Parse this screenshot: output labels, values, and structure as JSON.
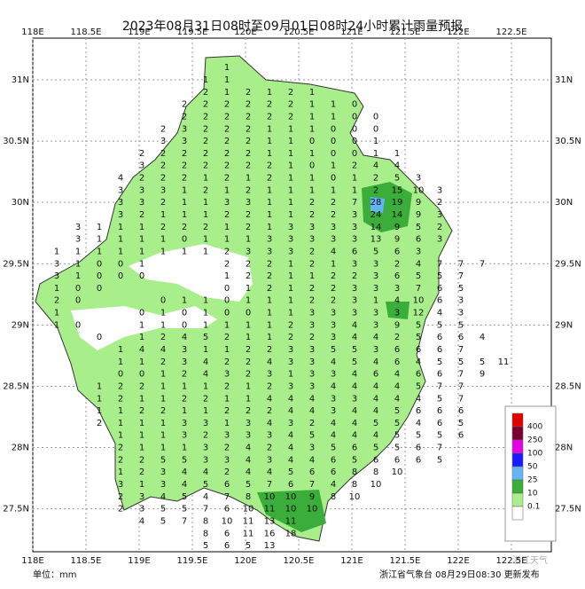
{
  "title": "2023年08月31日08时至09月01日08时24小时累计雨量预报",
  "xticks": [
    {
      "value": 118,
      "label": "118E"
    },
    {
      "value": 118.5,
      "label": "118.5E"
    },
    {
      "value": 119,
      "label": "119E"
    },
    {
      "value": 119.5,
      "label": "119.5E"
    },
    {
      "value": 120,
      "label": "120E"
    },
    {
      "value": 120.5,
      "label": "120.5E"
    },
    {
      "value": 121,
      "label": "121E"
    },
    {
      "value": 121.5,
      "label": "121.5E"
    },
    {
      "value": 122,
      "label": "122E"
    },
    {
      "value": 122.5,
      "label": "122.5E"
    }
  ],
  "yticks": [
    {
      "value": 31,
      "label": "31N"
    },
    {
      "value": 30.5,
      "label": "30.5N"
    },
    {
      "value": 30,
      "label": "30N"
    },
    {
      "value": 29.5,
      "label": "29.5N"
    },
    {
      "value": 29,
      "label": "29N"
    },
    {
      "value": 28.5,
      "label": "28.5N"
    },
    {
      "value": 28,
      "label": "28N"
    },
    {
      "value": 27.5,
      "label": "27.5N"
    }
  ],
  "xlim": [
    118,
    122.875
  ],
  "ylim": [
    27.15,
    31.34
  ],
  "legend": {
    "labels": [
      "400",
      "250",
      "100",
      "50",
      "25",
      "10",
      "0.1"
    ],
    "colors": [
      "#e00000",
      "#7a0032",
      "#e600e6",
      "#1a1aff",
      "#64b4f5",
      "#3aad3a",
      "#a8ef8c",
      "#ffffff"
    ]
  },
  "grid_values": [
    {
      "lat": 31.1,
      "lon0": 119.825,
      "values": [
        1
      ]
    },
    {
      "lat": 31.0,
      "lon0": 119.625,
      "values": [
        1,
        1
      ]
    },
    {
      "lat": 30.9,
      "lon0": 119.625,
      "values": [
        2,
        1,
        2,
        1,
        2,
        1
      ]
    },
    {
      "lat": 30.8,
      "lon0": 119.425,
      "values": [
        2,
        2,
        2,
        2,
        2,
        2,
        1,
        1,
        0
      ]
    },
    {
      "lat": 30.7,
      "lon0": 119.425,
      "values": [
        2,
        2,
        2,
        2,
        2,
        2,
        1,
        1,
        0,
        0
      ]
    },
    {
      "lat": 30.6,
      "lon0": 119.225,
      "values": [
        2,
        3,
        2,
        2,
        2,
        1,
        1,
        1,
        0,
        0,
        0
      ]
    },
    {
      "lat": 30.5,
      "lon0": 119.225,
      "values": [
        3,
        3,
        2,
        2,
        2,
        1,
        1,
        0,
        0,
        0,
        1
      ]
    },
    {
      "lat": 30.4,
      "lon0": 119.025,
      "values": [
        2,
        2,
        2,
        2,
        2,
        2,
        1,
        1,
        1,
        0,
        0,
        1,
        1
      ]
    },
    {
      "lat": 30.3,
      "lon0": 119.025,
      "values": [
        3,
        2,
        2,
        2,
        2,
        2,
        2,
        1,
        0,
        1,
        2,
        4,
        4
      ]
    },
    {
      "lat": 30.2,
      "lon0": 118.825,
      "values": [
        4,
        2,
        2,
        2,
        1,
        2,
        1,
        2,
        1,
        1,
        0,
        1,
        2,
        5,
        3
      ]
    },
    {
      "lat": 30.1,
      "lon0": 118.825,
      "values": [
        3,
        3,
        3,
        1,
        2,
        1,
        2,
        1,
        1,
        1,
        1,
        1,
        2,
        15,
        10,
        3
      ]
    },
    {
      "lat": 30.0,
      "lon0": 118.825,
      "values": [
        3,
        3,
        2,
        1,
        1,
        3,
        3,
        1,
        1,
        2,
        2,
        7,
        28,
        19,
        9,
        2
      ]
    },
    {
      "lat": 29.9,
      "lon0": 118.825,
      "values": [
        3,
        2,
        1,
        1,
        1,
        2,
        2,
        1,
        1,
        2,
        2,
        3,
        24,
        14,
        9,
        3
      ]
    },
    {
      "lat": 29.8,
      "lon0": 118.425,
      "values": [
        3,
        1,
        1,
        1,
        2,
        2,
        2,
        1,
        2,
        1,
        3,
        3,
        3,
        3,
        14,
        9,
        5,
        2
      ]
    },
    {
      "lat": 29.7,
      "lon0": 118.425,
      "values": [
        3,
        1,
        1,
        1,
        1,
        0,
        1,
        1,
        1,
        3,
        3,
        3,
        3,
        3,
        13,
        9,
        6,
        3
      ]
    },
    {
      "lat": 29.6,
      "lon0": 118.225,
      "values": [
        1,
        1,
        1,
        1,
        1,
        1,
        1,
        1,
        2,
        3,
        3,
        3,
        2,
        4,
        6,
        5,
        6,
        3
      ]
    },
    {
      "lat": 29.5,
      "lon0": 118.225,
      "values": [
        3,
        1,
        0,
        0,
        1,
        null,
        null,
        null,
        2,
        2,
        2,
        1,
        2,
        1,
        3,
        3,
        2,
        4,
        7,
        7,
        7
      ]
    },
    {
      "lat": 29.4,
      "lon0": 118.225,
      "values": [
        3,
        1,
        0,
        0,
        0,
        null,
        null,
        null,
        1,
        2,
        2,
        1,
        1,
        2,
        2,
        3,
        6,
        5,
        5,
        7
      ]
    },
    {
      "lat": 29.3,
      "lon0": 118.225,
      "values": [
        1,
        0,
        0,
        null,
        null,
        null,
        null,
        null,
        0,
        1,
        2,
        1,
        2,
        2,
        3,
        3,
        3,
        7,
        6,
        5
      ]
    },
    {
      "lat": 29.2,
      "lon0": 118.225,
      "values": [
        2,
        0,
        null,
        null,
        null,
        0,
        1,
        1,
        0,
        1,
        1,
        1,
        2,
        2,
        3,
        1,
        4,
        10,
        6,
        3
      ]
    },
    {
      "lat": 29.1,
      "lon0": 118.225,
      "values": [
        1,
        null,
        null,
        null,
        0,
        1,
        0,
        1,
        0,
        0,
        1,
        1,
        3,
        3,
        3,
        3,
        3,
        12,
        4,
        3
      ]
    },
    {
      "lat": 29.0,
      "lon0": 118.225,
      "values": [
        1,
        0,
        null,
        null,
        1,
        1,
        0,
        1,
        1,
        1,
        1,
        2,
        3,
        3,
        4,
        3,
        9,
        5,
        5,
        5
      ]
    },
    {
      "lat": 28.9,
      "lon0": 118.625,
      "values": [
        0,
        null,
        1,
        2,
        4,
        5,
        2,
        1,
        1,
        2,
        2,
        3,
        4,
        4,
        2,
        5,
        6,
        6,
        4
      ]
    },
    {
      "lat": 28.8,
      "lon0": 118.825,
      "values": [
        1,
        4,
        4,
        3,
        1,
        1,
        2,
        2,
        3,
        3,
        5,
        5,
        3,
        6,
        6,
        6,
        7
      ]
    },
    {
      "lat": 28.7,
      "lon0": 118.825,
      "values": [
        1,
        1,
        2,
        3,
        4,
        2,
        2,
        4,
        3,
        3,
        4,
        5,
        4,
        6,
        4,
        5,
        5,
        5,
        11
      ]
    },
    {
      "lat": 28.6,
      "lon0": 118.825,
      "values": [
        0,
        0,
        1,
        2,
        4,
        3,
        2,
        3,
        1,
        3,
        3,
        4,
        6,
        4,
        6,
        6,
        7,
        9
      ]
    },
    {
      "lat": 28.5,
      "lon0": 118.625,
      "values": [
        1,
        2,
        2,
        1,
        1,
        1,
        2,
        1,
        2,
        3,
        3,
        4,
        4,
        4,
        4,
        5,
        7,
        7
      ]
    },
    {
      "lat": 28.4,
      "lon0": 118.625,
      "values": [
        1,
        2,
        1,
        1,
        2,
        2,
        1,
        1,
        4,
        4,
        4,
        3,
        3,
        4,
        4,
        4,
        5,
        7
      ]
    },
    {
      "lat": 28.3,
      "lon0": 118.625,
      "values": [
        1,
        1,
        2,
        2,
        1,
        1,
        2,
        2,
        2,
        4,
        4,
        3,
        4,
        4,
        5,
        6,
        6,
        6
      ]
    },
    {
      "lat": 28.2,
      "lon0": 118.625,
      "values": [
        2,
        1,
        1,
        1,
        3,
        3,
        1,
        3,
        4,
        3,
        2,
        4,
        4,
        5,
        5,
        4,
        6,
        5
      ]
    },
    {
      "lat": 28.1,
      "lon0": 118.825,
      "values": [
        1,
        1,
        1,
        3,
        2,
        3,
        3,
        3,
        4,
        5,
        4,
        4,
        4,
        5,
        5,
        5,
        6
      ]
    },
    {
      "lat": 28.0,
      "lon0": 118.825,
      "values": [
        2,
        1,
        1,
        1,
        3,
        2,
        4,
        2,
        4,
        3,
        5,
        6,
        5,
        5,
        6,
        7
      ]
    },
    {
      "lat": 27.9,
      "lon0": 118.825,
      "values": [
        2,
        2,
        5,
        5,
        3,
        3,
        4,
        3,
        4,
        4,
        6,
        5,
        6,
        6,
        6,
        5
      ]
    },
    {
      "lat": 27.8,
      "lon0": 118.825,
      "values": [
        1,
        2,
        3,
        4,
        4,
        2,
        4,
        4,
        5,
        6,
        6,
        8,
        8,
        10
      ]
    },
    {
      "lat": 27.7,
      "lon0": 118.825,
      "values": [
        3,
        1,
        3,
        4,
        5,
        6,
        5,
        7,
        6,
        7,
        4,
        8,
        10
      ]
    },
    {
      "lat": 27.6,
      "lon0": 118.825,
      "values": [
        2,
        3,
        4,
        5,
        4,
        7,
        8,
        10,
        10,
        9,
        8,
        10
      ]
    },
    {
      "lat": 27.5,
      "lon0": 118.825,
      "values": [
        2,
        3,
        5,
        5,
        7,
        6,
        10,
        11,
        10,
        10
      ]
    },
    {
      "lat": 27.4,
      "lon0": 119.025,
      "values": [
        4,
        5,
        7,
        8,
        10,
        11,
        13,
        11
      ]
    },
    {
      "lat": 27.3,
      "lon0": 119.625,
      "values": [
        8,
        6,
        11,
        16,
        18
      ]
    },
    {
      "lat": 27.2,
      "lon0": 119.625,
      "values": [
        5,
        6,
        5,
        13
      ]
    }
  ],
  "unit": "单位：mm",
  "footer": "浙江省气象台  08月29日08:30 更新发布",
  "watermark": "浙江天气"
}
